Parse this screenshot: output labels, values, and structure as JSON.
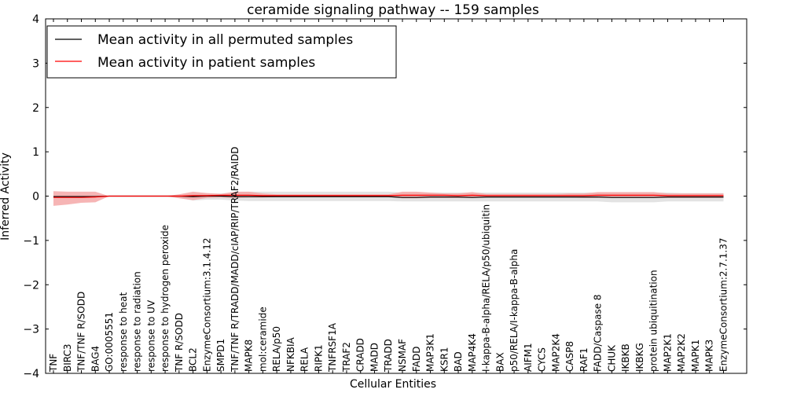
{
  "chart_data": {
    "type": "area",
    "title": "ceramide signaling pathway -- 159 samples",
    "xlabel": "Cellular Entities",
    "ylabel": "Inferred Activity",
    "ylim": [
      -4,
      4
    ],
    "yticks": [
      -4,
      -3,
      -2,
      -1,
      0,
      1,
      2,
      3,
      4
    ],
    "legend_position": "upper-left",
    "categories": [
      "TNF",
      "BIRC3",
      "TNF/TNF R/SODD",
      "BAG4",
      "GO:0005551",
      "response to heat",
      "response to radiation",
      "response to UV",
      "response to hydrogen peroxide",
      "TNF R/SODD",
      "BCL2",
      "EnzymeConsortium:3.1.4.12",
      "SMPD1",
      "TNF/TNF R/TRADD/MADD/cIAP/RIP/TRAF2/RAIDD",
      "MAPK8",
      "mol:ceramide",
      "RELA/p50",
      "NFKBIA",
      "RELA",
      "RIPK1",
      "TNFRSF1A",
      "TRAF2",
      "CRADD",
      "MADD",
      "TRADD",
      "NSMAF",
      "FADD",
      "MAP3K1",
      "KSR1",
      "BAD",
      "MAP4K4",
      "I-kappa-B-alpha/RELA/p50/ubiquitin",
      "BAX",
      "p50/RELA/I-kappa-B-alpha",
      "AIFM1",
      "CYCS",
      "MAP2K4",
      "CASP8",
      "RAF1",
      "FADD/Caspase 8",
      "CHUK",
      "IKBKB",
      "IKBKG",
      "protein ubiquitination",
      "MAP2K1",
      "MAP2K2",
      "MAPK1",
      "MAPK3",
      "EnzymeConsortium:2.7.1.37"
    ],
    "series": [
      {
        "name": "Mean activity in all permuted samples",
        "color": "#000000",
        "values": [
          -0.01,
          -0.01,
          -0.01,
          -0.01,
          0,
          0,
          0,
          0,
          0,
          0,
          -0.01,
          0,
          0,
          -0.01,
          -0.01,
          -0.01,
          -0.01,
          -0.01,
          -0.01,
          -0.01,
          -0.01,
          -0.01,
          -0.01,
          -0.01,
          -0.01,
          -0.03,
          -0.03,
          -0.02,
          -0.02,
          -0.02,
          -0.03,
          -0.02,
          -0.02,
          -0.02,
          -0.02,
          -0.02,
          -0.02,
          -0.02,
          -0.02,
          -0.02,
          -0.03,
          -0.03,
          -0.03,
          -0.03,
          -0.02,
          -0.02,
          -0.02,
          -0.02,
          -0.02
        ],
        "band_upper": [
          0.02,
          0.02,
          0.02,
          0.02,
          0,
          0,
          0,
          0,
          0,
          0.02,
          0.06,
          0.06,
          0.06,
          0.09,
          0.1,
          0.1,
          0.1,
          0.1,
          0.1,
          0.1,
          0.1,
          0.1,
          0.1,
          0.1,
          0.1,
          0.08,
          0.08,
          0.08,
          0.08,
          0.08,
          0.08,
          0.08,
          0.08,
          0.08,
          0.08,
          0.08,
          0.08,
          0.08,
          0.08,
          0.08,
          0.08,
          0.08,
          0.08,
          0.08,
          0.08,
          0.07,
          0.07,
          0.07,
          0.07
        ],
        "band_lower": [
          -0.04,
          -0.04,
          -0.04,
          -0.04,
          0,
          0,
          0,
          0,
          0,
          -0.04,
          -0.1,
          -0.08,
          -0.08,
          -0.1,
          -0.11,
          -0.11,
          -0.11,
          -0.11,
          -0.11,
          -0.11,
          -0.11,
          -0.11,
          -0.11,
          -0.11,
          -0.11,
          -0.12,
          -0.12,
          -0.12,
          -0.12,
          -0.12,
          -0.12,
          -0.12,
          -0.12,
          -0.12,
          -0.12,
          -0.12,
          -0.12,
          -0.12,
          -0.12,
          -0.12,
          -0.14,
          -0.14,
          -0.14,
          -0.14,
          -0.12,
          -0.12,
          -0.12,
          -0.12,
          -0.12
        ],
        "fill": "#d9d9d9"
      },
      {
        "name": "Mean activity in patient samples",
        "color": "#ff0000",
        "values": [
          -0.03,
          -0.03,
          -0.03,
          -0.02,
          0,
          0,
          0,
          0,
          0,
          0,
          0.01,
          0.01,
          0.02,
          0.02,
          0.02,
          0.01,
          0.01,
          0.01,
          0.01,
          0.01,
          0.01,
          0.01,
          0.01,
          0.01,
          0.01,
          0.02,
          0.02,
          0.02,
          0.02,
          0.01,
          0.02,
          0.01,
          0.01,
          0.01,
          0.01,
          0.01,
          0.01,
          0.01,
          0.01,
          0.02,
          0.02,
          0.02,
          0.02,
          0.02,
          0.01,
          0.01,
          0.01,
          0.01,
          0.01
        ],
        "band_upper": [
          0.11,
          0.1,
          0.1,
          0.1,
          0,
          0,
          0,
          0,
          0,
          0.04,
          0.1,
          0.07,
          0.05,
          0.1,
          0.1,
          0.06,
          0.04,
          0.04,
          0.04,
          0.04,
          0.04,
          0.04,
          0.04,
          0.04,
          0.04,
          0.1,
          0.1,
          0.08,
          0.06,
          0.06,
          0.09,
          0.05,
          0.05,
          0.05,
          0.05,
          0.05,
          0.05,
          0.06,
          0.06,
          0.09,
          0.09,
          0.09,
          0.09,
          0.09,
          0.06,
          0.06,
          0.06,
          0.06,
          0.06
        ],
        "band_lower": [
          -0.22,
          -0.19,
          -0.15,
          -0.14,
          0,
          0,
          0,
          0,
          0,
          -0.05,
          -0.09,
          -0.04,
          -0.03,
          -0.04,
          -0.03,
          -0.03,
          -0.02,
          -0.02,
          -0.02,
          -0.02,
          -0.02,
          -0.02,
          -0.02,
          -0.02,
          -0.02,
          -0.05,
          -0.05,
          -0.04,
          -0.04,
          -0.04,
          -0.04,
          -0.03,
          -0.03,
          -0.03,
          -0.03,
          -0.03,
          -0.03,
          -0.03,
          -0.04,
          -0.04,
          -0.04,
          -0.04,
          -0.04,
          -0.04,
          -0.04,
          -0.04,
          -0.04,
          -0.04,
          -0.04
        ],
        "fill": "#f4a3a3"
      }
    ]
  }
}
